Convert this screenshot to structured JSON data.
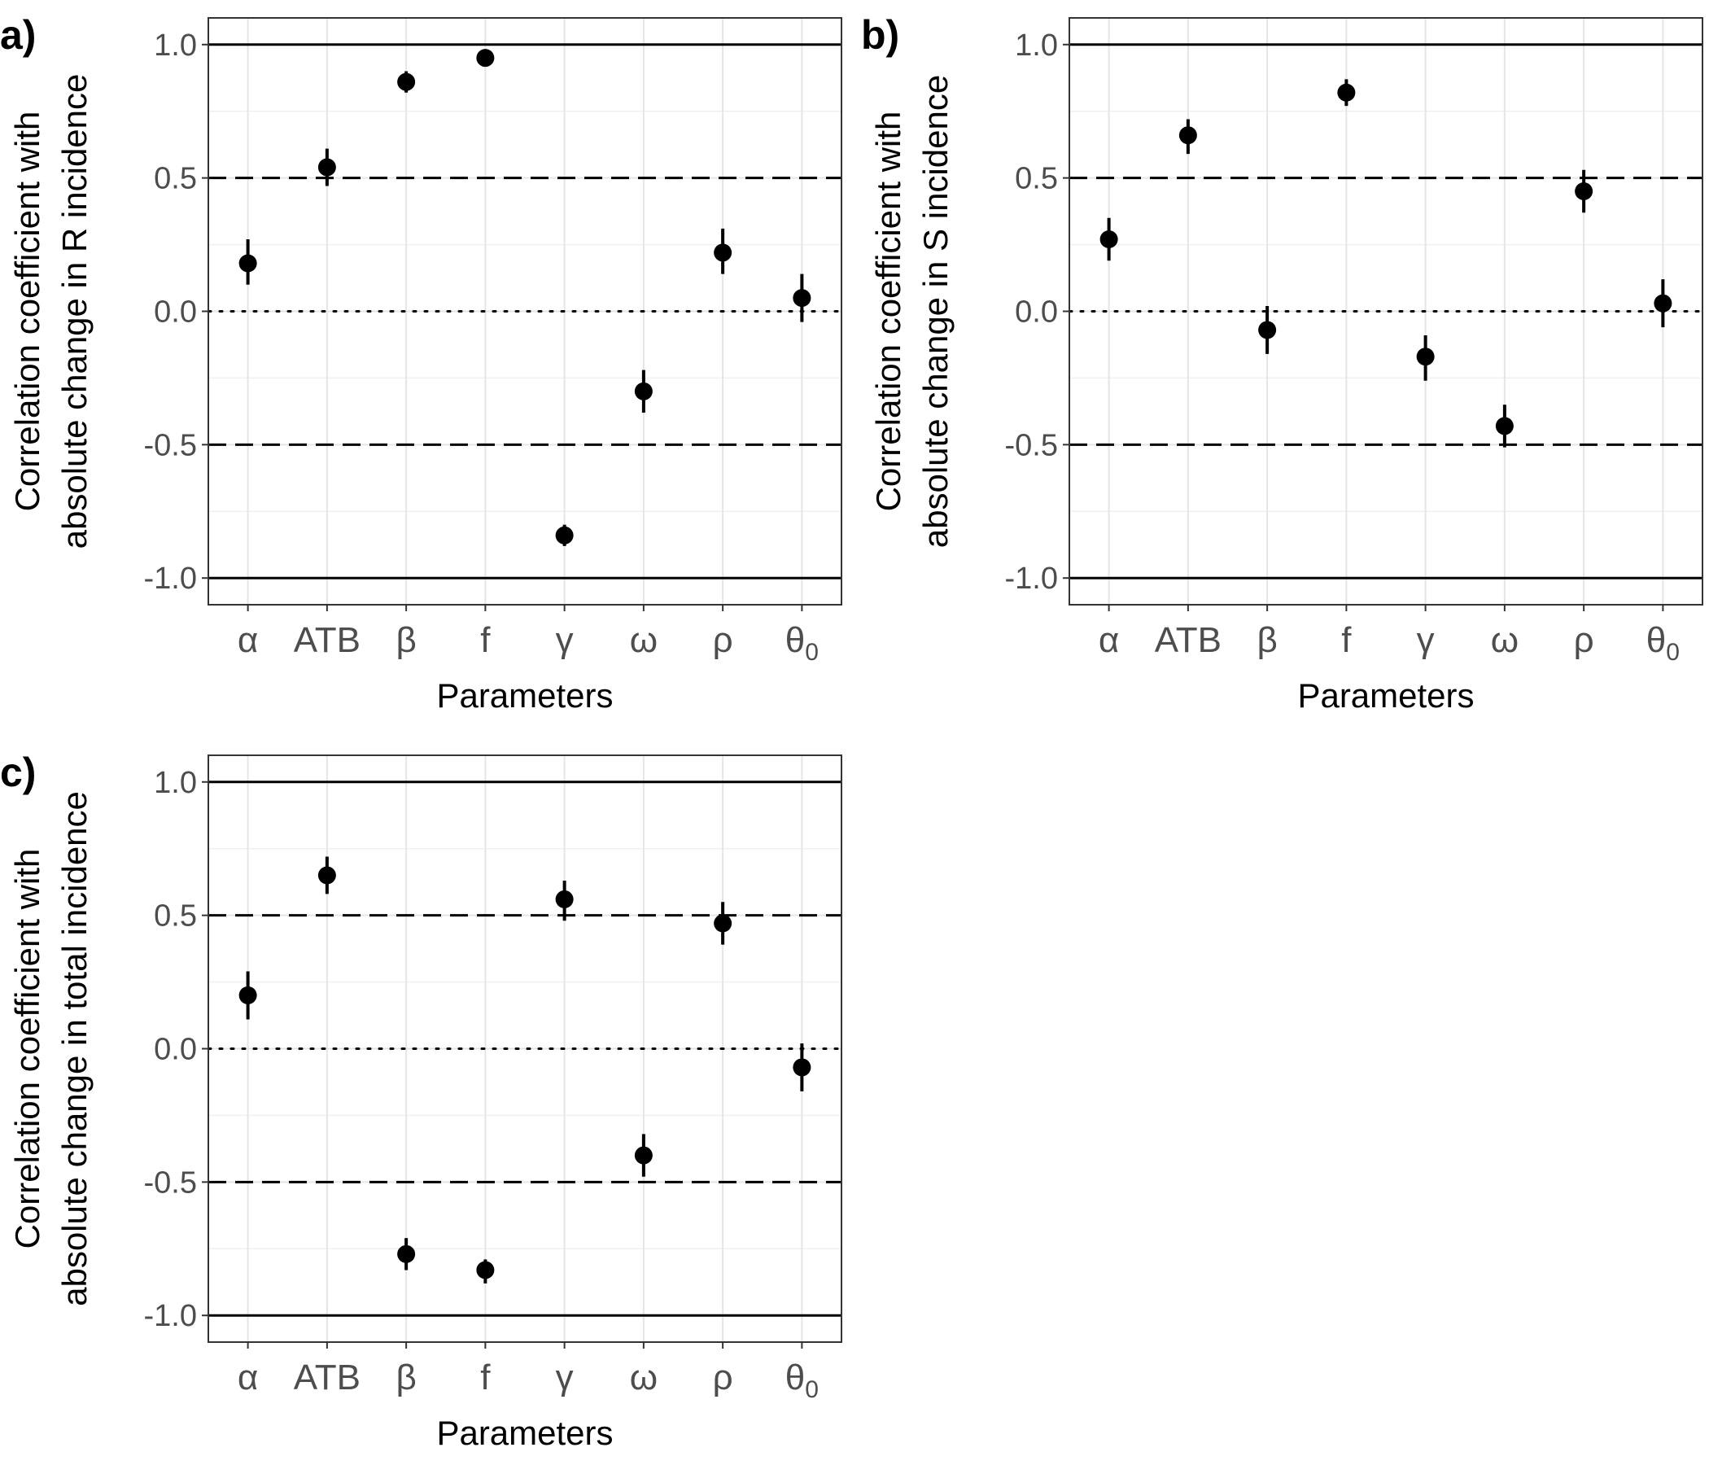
{
  "chart_data": [
    {
      "type": "scatter",
      "panel_label": "a)",
      "xlabel": "Parameters",
      "ylabel_lines": [
        "Correlation coefficient with",
        "absolute change in R incidence"
      ],
      "categories": [
        "α",
        "ATB",
        "β",
        "f",
        "γ",
        "ω",
        "ρ",
        "θ0"
      ],
      "values": [
        0.18,
        0.54,
        0.86,
        0.95,
        -0.84,
        -0.3,
        0.22,
        0.05
      ],
      "ci_low": [
        0.1,
        0.47,
        0.82,
        0.93,
        -0.88,
        -0.38,
        0.14,
        -0.04
      ],
      "ci_high": [
        0.27,
        0.61,
        0.9,
        0.97,
        -0.8,
        -0.22,
        0.31,
        0.14
      ],
      "yticks": [
        1.0,
        0.5,
        0.0,
        -0.5,
        -1.0
      ],
      "ytick_labels": [
        "1.0",
        "0.5",
        "0.0",
        "-0.5",
        "-1.0"
      ],
      "ylim": [
        -1.1,
        1.1
      ],
      "reference_lines": [
        {
          "y": 1.0,
          "style": "solid"
        },
        {
          "y": 0.5,
          "style": "dashed"
        },
        {
          "y": 0.0,
          "style": "dotted"
        },
        {
          "y": -0.5,
          "style": "dashed"
        },
        {
          "y": -1.0,
          "style": "solid"
        }
      ],
      "grid": true
    },
    {
      "type": "scatter",
      "panel_label": "b)",
      "xlabel": "Parameters",
      "ylabel_lines": [
        "Correlation coefficient with",
        "absolute change in S incidence"
      ],
      "categories": [
        "α",
        "ATB",
        "β",
        "f",
        "γ",
        "ω",
        "ρ",
        "θ0"
      ],
      "values": [
        0.27,
        0.66,
        -0.07,
        0.82,
        -0.17,
        -0.43,
        0.45,
        0.03
      ],
      "ci_low": [
        0.19,
        0.59,
        -0.16,
        0.77,
        -0.26,
        -0.51,
        0.37,
        -0.06
      ],
      "ci_high": [
        0.35,
        0.72,
        0.02,
        0.87,
        -0.09,
        -0.35,
        0.53,
        0.12
      ],
      "yticks": [
        1.0,
        0.5,
        0.0,
        -0.5,
        -1.0
      ],
      "ytick_labels": [
        "1.0",
        "0.5",
        "0.0",
        "-0.5",
        "-1.0"
      ],
      "ylim": [
        -1.1,
        1.1
      ],
      "reference_lines": [
        {
          "y": 1.0,
          "style": "solid"
        },
        {
          "y": 0.5,
          "style": "dashed"
        },
        {
          "y": 0.0,
          "style": "dotted"
        },
        {
          "y": -0.5,
          "style": "dashed"
        },
        {
          "y": -1.0,
          "style": "solid"
        }
      ],
      "grid": true
    },
    {
      "type": "scatter",
      "panel_label": "c)",
      "xlabel": "Parameters",
      "ylabel_lines": [
        "Correlation coefficient with",
        "absolute change in total incidence"
      ],
      "categories": [
        "α",
        "ATB",
        "β",
        "f",
        "γ",
        "ω",
        "ρ",
        "θ0"
      ],
      "values": [
        0.2,
        0.65,
        -0.77,
        -0.83,
        0.56,
        -0.4,
        0.47,
        -0.07
      ],
      "ci_low": [
        0.11,
        0.58,
        -0.83,
        -0.88,
        0.48,
        -0.48,
        0.39,
        -0.16
      ],
      "ci_high": [
        0.29,
        0.72,
        -0.71,
        -0.79,
        0.63,
        -0.32,
        0.55,
        0.02
      ],
      "yticks": [
        1.0,
        0.5,
        0.0,
        -0.5,
        -1.0
      ],
      "ytick_labels": [
        "1.0",
        "0.5",
        "0.0",
        "-0.5",
        "-1.0"
      ],
      "ylim": [
        -1.1,
        1.1
      ],
      "reference_lines": [
        {
          "y": 1.0,
          "style": "solid"
        },
        {
          "y": 0.5,
          "style": "dashed"
        },
        {
          "y": 0.0,
          "style": "dotted"
        },
        {
          "y": -0.5,
          "style": "dashed"
        },
        {
          "y": -1.0,
          "style": "solid"
        }
      ],
      "grid": true
    }
  ]
}
